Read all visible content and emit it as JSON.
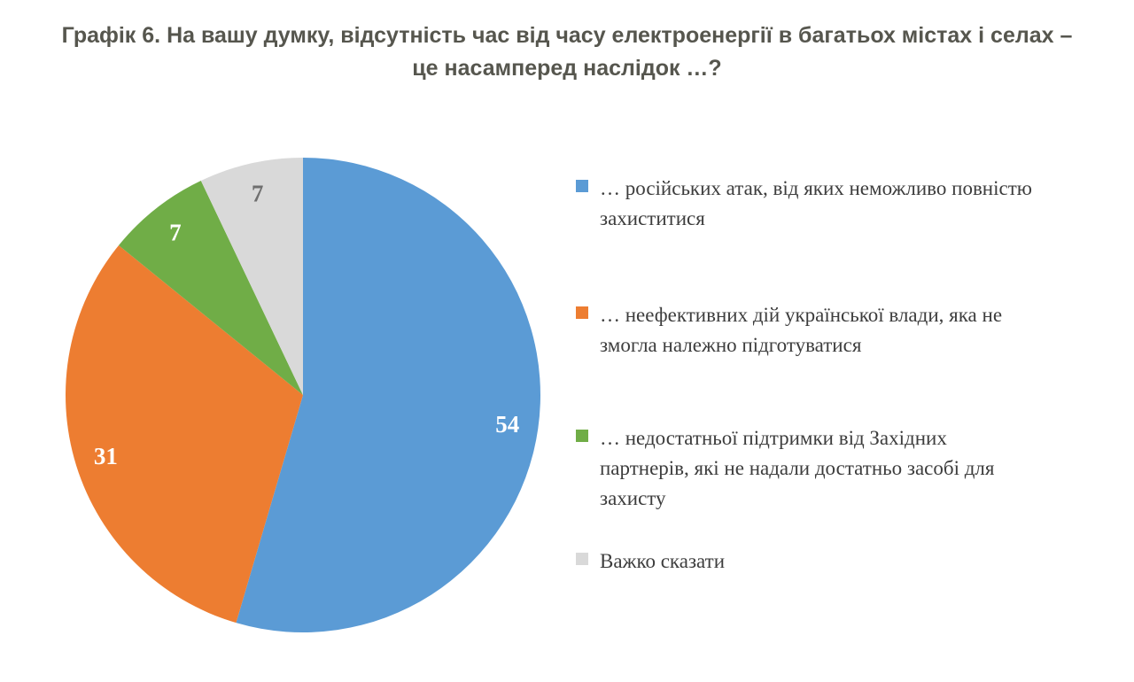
{
  "title": {
    "text": "Графік 6. На вашу думку, відсутність час від часу електроенергії в багатьох містах і селах – це насамперед наслідок …?",
    "color": "#56564e"
  },
  "chart_data": {
    "type": "pie",
    "title": "Графік 6. На вашу думку, відсутність час від часу електроенергії в багатьох містах і селах – це насамперед наслідок …?",
    "labels": [
      "… російських атак, від яких неможливо повністю захиститися",
      "… неефективних дій української влади, яка не змогла належно підготуватися",
      "… недостатньої підтримки від Західних партнерів, які не надали достатньо засобі для захисту",
      "Важко сказати"
    ],
    "values": [
      54,
      31,
      7,
      7
    ],
    "colors": [
      "#5b9bd5",
      "#ed7d31",
      "#70ad47",
      "#d9d9d9"
    ],
    "value_label_colors": [
      "#ffffff",
      "#ffffff",
      "#ffffff",
      "#6f6f6f"
    ],
    "start_angle_deg": 0,
    "direction": "clockwise",
    "legend_position": "right",
    "value_label_radius_factor": 0.87
  }
}
